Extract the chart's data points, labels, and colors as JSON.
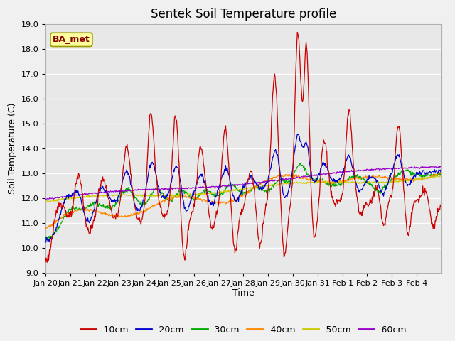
{
  "title": "Sentek Soil Temperature profile",
  "xlabel": "Time",
  "ylabel": "Soil Temperature (C)",
  "ylim": [
    9.0,
    19.0
  ],
  "yticks": [
    9.0,
    10.0,
    11.0,
    12.0,
    13.0,
    14.0,
    15.0,
    16.0,
    17.0,
    18.0,
    19.0
  ],
  "xtick_labels": [
    "Jan 20",
    "Jan 21",
    "Jan 22",
    "Jan 23",
    "Jan 24",
    "Jan 25",
    "Jan 26",
    "Jan 27",
    "Jan 28",
    "Jan 29",
    "Jan 30",
    "Jan 31",
    "Feb 1",
    "Feb 2",
    "Feb 3",
    "Feb 4"
  ],
  "legend_label": "BA_met",
  "series_labels": [
    "-10cm",
    "-20cm",
    "-30cm",
    "-40cm",
    "-50cm",
    "-60cm"
  ],
  "series_colors": [
    "#cc0000",
    "#0000cc",
    "#00aa00",
    "#ff8800",
    "#cccc00",
    "#9900cc"
  ],
  "fig_facecolor": "#f0f0f0",
  "plot_bg_color": "#e8e8e8",
  "grid_color": "#ffffff",
  "title_fontsize": 12,
  "axis_fontsize": 9,
  "tick_fontsize": 8,
  "legend_fontsize": 9,
  "ba_met_fontsize": 9,
  "n_days": 16
}
